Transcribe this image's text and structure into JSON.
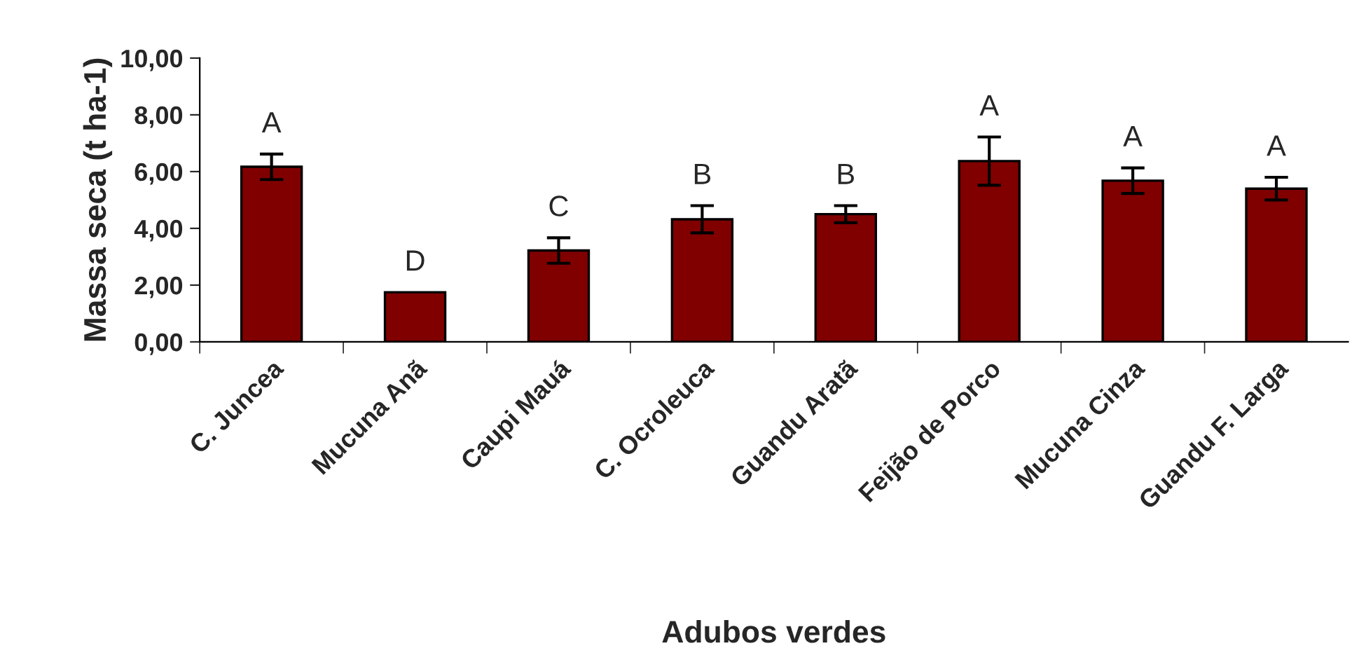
{
  "chart_data": {
    "type": "bar",
    "xlabel": "Adubos verdes",
    "ylabel": "Massa seca (t ha-1)",
    "categories": [
      "C. Juncea",
      "Mucuna Anã",
      "Caupi Mauá",
      "C. Ocroleuca",
      "Guandu Aratã",
      "Feijão de Porco",
      "Mucuna Cinza",
      "Guandu F. Larga"
    ],
    "values": [
      6.17,
      1.75,
      3.22,
      4.32,
      4.5,
      6.37,
      5.68,
      5.4
    ],
    "errors": [
      0.45,
      null,
      0.45,
      0.48,
      0.3,
      0.85,
      0.45,
      0.4
    ],
    "color": "#800000",
    "ylim": [
      0,
      10
    ],
    "yticks": [
      {
        "value": 0,
        "label": "0,00"
      },
      {
        "value": 2,
        "label": "2,00"
      },
      {
        "value": 4,
        "label": "4,00"
      },
      {
        "value": 6,
        "label": "6,00"
      },
      {
        "value": 8,
        "label": "8,00"
      },
      {
        "value": 10,
        "label": "10,00"
      }
    ],
    "grid": false,
    "legend": false,
    "annotations": [
      "A",
      "D",
      "C",
      "B",
      "B",
      "A",
      "A",
      "A"
    ]
  }
}
